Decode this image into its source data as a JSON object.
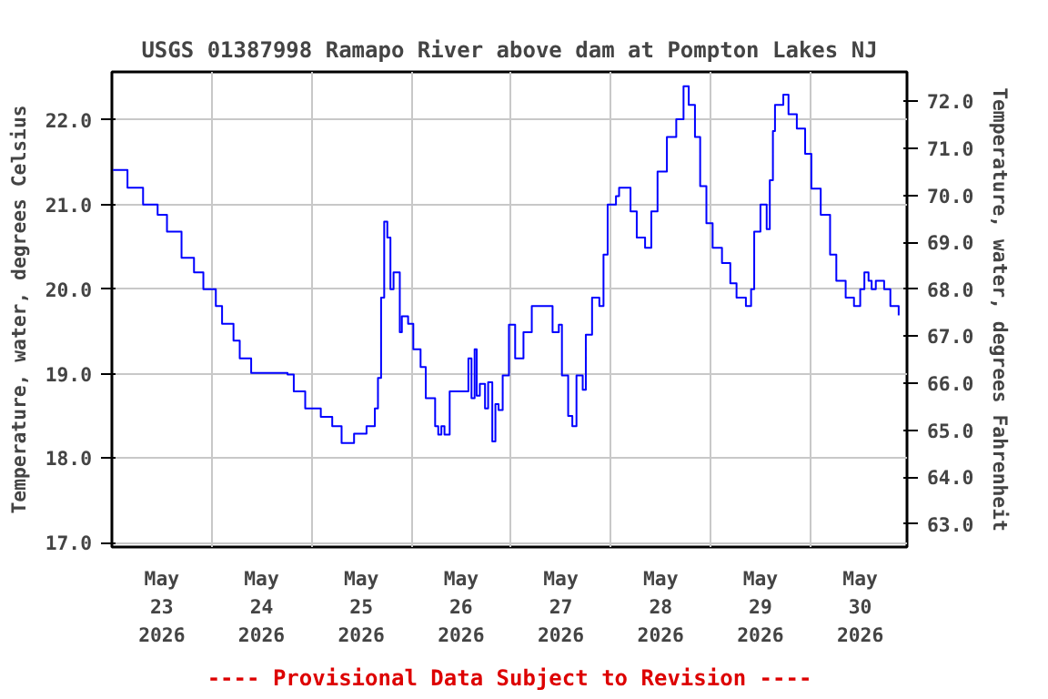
{
  "chart_data": {
    "type": "step",
    "title": "USGS 01387998 Ramapo River above dam at Pompton Lakes NJ",
    "ylabel": "Temperature, water, degrees Celsius",
    "y2label": "Temperature, water, degrees Fahrenheit",
    "annotations": [
      "---- Provisional Data Subject to Revision ----"
    ],
    "x": [
      "2026-05-23T00:15",
      "2026-05-23T03:45",
      "2026-05-23T07:30",
      "2026-05-23T11:00",
      "2026-05-23T13:15",
      "2026-05-23T16:45",
      "2026-05-23T19:45",
      "2026-05-23T22:00",
      "2026-05-24T01:00",
      "2026-05-24T02:30",
      "2026-05-24T05:15",
      "2026-05-24T06:45",
      "2026-05-24T09:30",
      "2026-05-24T18:15",
      "2026-05-24T19:45",
      "2026-05-24T22:30",
      "2026-05-25T02:15",
      "2026-05-25T05:00",
      "2026-05-25T07:15",
      "2026-05-25T09:30",
      "2026-05-25T10:15",
      "2026-05-25T13:15",
      "2026-05-25T15:15",
      "2026-05-25T16:00",
      "2026-05-25T16:45",
      "2026-05-25T17:30",
      "2026-05-25T18:15",
      "2026-05-25T19:00",
      "2026-05-25T19:45",
      "2026-05-25T21:00",
      "2026-05-25T21:15",
      "2026-05-25T21:45",
      "2026-05-25T23:15",
      "2026-05-26T00:30",
      "2026-05-26T02:15",
      "2026-05-26T03:30",
      "2026-05-26T05:45",
      "2026-05-26T06:30",
      "2026-05-26T07:15",
      "2026-05-26T08:00",
      "2026-05-26T09:15",
      "2026-05-26T12:30",
      "2026-05-26T13:45",
      "2026-05-26T14:30",
      "2026-05-26T15:15",
      "2026-05-26T15:45",
      "2026-05-26T16:30",
      "2026-05-26T17:45",
      "2026-05-26T18:30",
      "2026-05-26T19:30",
      "2026-05-26T20:15",
      "2026-05-26T21:00",
      "2026-05-26T22:00",
      "2026-05-26T23:30",
      "2026-05-27T00:15",
      "2026-05-27T01:00",
      "2026-05-27T03:00",
      "2026-05-27T05:00",
      "2026-05-27T09:15",
      "2026-05-27T10:00",
      "2026-05-27T11:30",
      "2026-05-27T12:15",
      "2026-05-27T13:45",
      "2026-05-27T14:45",
      "2026-05-27T15:45",
      "2026-05-27T17:15",
      "2026-05-27T18:00",
      "2026-05-27T19:30",
      "2026-05-27T21:15",
      "2026-05-27T22:15",
      "2026-05-27T23:15",
      "2026-05-28T01:15",
      "2026-05-28T02:00",
      "2026-05-28T03:15",
      "2026-05-28T04:45",
      "2026-05-28T06:15",
      "2026-05-28T08:15",
      "2026-05-28T09:45",
      "2026-05-28T11:15",
      "2026-05-28T13:30",
      "2026-05-28T15:45",
      "2026-05-28T17:30",
      "2026-05-28T18:45",
      "2026-05-28T20:15",
      "2026-05-28T21:30",
      "2026-05-28T23:00",
      "2026-05-29T00:30",
      "2026-05-29T02:45",
      "2026-05-29T04:45",
      "2026-05-29T06:15",
      "2026-05-29T08:30",
      "2026-05-29T09:45",
      "2026-05-29T10:30",
      "2026-05-29T12:00",
      "2026-05-29T13:30",
      "2026-05-29T14:15",
      "2026-05-29T15:00",
      "2026-05-29T15:30",
      "2026-05-29T17:30",
      "2026-05-29T18:45",
      "2026-05-29T20:45",
      "2026-05-29T22:45",
      "2026-05-30T00:15",
      "2026-05-30T02:30",
      "2026-05-30T04:45",
      "2026-05-30T06:15",
      "2026-05-30T08:30",
      "2026-05-30T10:30",
      "2026-05-30T12:00",
      "2026-05-30T13:00",
      "2026-05-30T14:00",
      "2026-05-30T14:45",
      "2026-05-30T15:45",
      "2026-05-30T17:45",
      "2026-05-30T19:15",
      "2026-05-30T20:45",
      "2026-05-30T21:15"
    ],
    "series": [
      {
        "color": "#0000ff",
        "values": [
          21.41,
          21.2,
          21.0,
          20.88,
          20.68,
          20.37,
          20.2,
          20.0,
          19.8,
          19.59,
          19.39,
          19.18,
          19.01,
          18.99,
          18.79,
          18.59,
          18.49,
          18.38,
          18.18,
          18.18,
          18.29,
          18.38,
          18.59,
          18.95,
          19.9,
          20.8,
          20.61,
          20.0,
          20.2,
          20.2,
          19.49,
          19.68,
          19.59,
          19.29,
          19.08,
          18.71,
          18.38,
          18.28,
          18.38,
          18.28,
          18.79,
          18.79,
          19.18,
          18.71,
          19.29,
          18.74,
          18.88,
          18.59,
          18.9,
          18.2,
          18.64,
          18.57,
          18.98,
          19.58,
          19.58,
          19.18,
          19.49,
          19.8,
          19.8,
          19.49,
          19.58,
          18.98,
          18.5,
          18.38,
          18.98,
          18.81,
          19.46,
          19.9,
          19.8,
          20.41,
          21.0,
          21.1,
          21.2,
          21.2,
          20.92,
          20.61,
          20.49,
          20.92,
          21.39,
          21.8,
          22.01,
          22.4,
          22.18,
          21.8,
          21.22,
          20.78,
          20.49,
          20.31,
          20.07,
          19.9,
          19.8,
          20.0,
          20.68,
          21.0,
          20.71,
          21.29,
          21.87,
          22.18,
          22.3,
          22.07,
          21.9,
          21.6,
          21.19,
          20.88,
          20.41,
          20.1,
          19.9,
          19.8,
          20.0,
          20.2,
          20.1,
          20.0,
          20.1,
          20.0,
          19.8,
          19.8,
          19.69
        ]
      }
    ],
    "xlim": [
      "2026-05-23T00:00",
      "2026-05-30T23:15"
    ],
    "xticks": [
      {
        "value": "2026-05-23T00:00",
        "label": null
      },
      {
        "value": "2026-05-23T12:00",
        "label": "May\n23\n2026"
      },
      {
        "value": "2026-05-24T00:00",
        "label": null
      },
      {
        "value": "2026-05-24T12:00",
        "label": "May\n24\n2026"
      },
      {
        "value": "2026-05-25T00:00",
        "label": null
      },
      {
        "value": "2026-05-25T12:00",
        "label": "May\n25\n2026"
      },
      {
        "value": "2026-05-26T00:00",
        "label": null
      },
      {
        "value": "2026-05-26T12:00",
        "label": "May\n26\n2026"
      },
      {
        "value": "2026-05-27T00:00",
        "label": null
      },
      {
        "value": "2026-05-27T12:00",
        "label": "May\n27\n2026"
      },
      {
        "value": "2026-05-28T00:00",
        "label": null
      },
      {
        "value": "2026-05-28T12:00",
        "label": "May\n28\n2026"
      },
      {
        "value": "2026-05-29T00:00",
        "label": null
      },
      {
        "value": "2026-05-29T12:00",
        "label": "May\n29\n2026"
      },
      {
        "value": "2026-05-30T00:00",
        "label": null
      },
      {
        "value": "2026-05-30T12:00",
        "label": "May\n30\n2026"
      }
    ],
    "ylim": [
      16.95,
      22.57
    ],
    "yticks": [
      {
        "value": 17,
        "label": "17.0"
      },
      {
        "value": 18,
        "label": "18.0"
      },
      {
        "value": 19,
        "label": "19.0"
      },
      {
        "value": 20,
        "label": "20.0"
      },
      {
        "value": 21,
        "label": "21.0"
      },
      {
        "value": 22,
        "label": "22.0"
      }
    ],
    "y2lim": [
      62.51,
      72.63
    ],
    "y2ticks": [
      {
        "value": 63,
        "label": "63.0"
      },
      {
        "value": 64,
        "label": "64.0"
      },
      {
        "value": 65,
        "label": "65.0"
      },
      {
        "value": 66,
        "label": "66.0"
      },
      {
        "value": 67,
        "label": "67.0"
      },
      {
        "value": 68,
        "label": "68.0"
      },
      {
        "value": 69,
        "label": "69.0"
      },
      {
        "value": 70,
        "label": "70.0"
      },
      {
        "value": 71,
        "label": "71.0"
      },
      {
        "value": 72,
        "label": "72.0"
      }
    ],
    "grid": true
  }
}
